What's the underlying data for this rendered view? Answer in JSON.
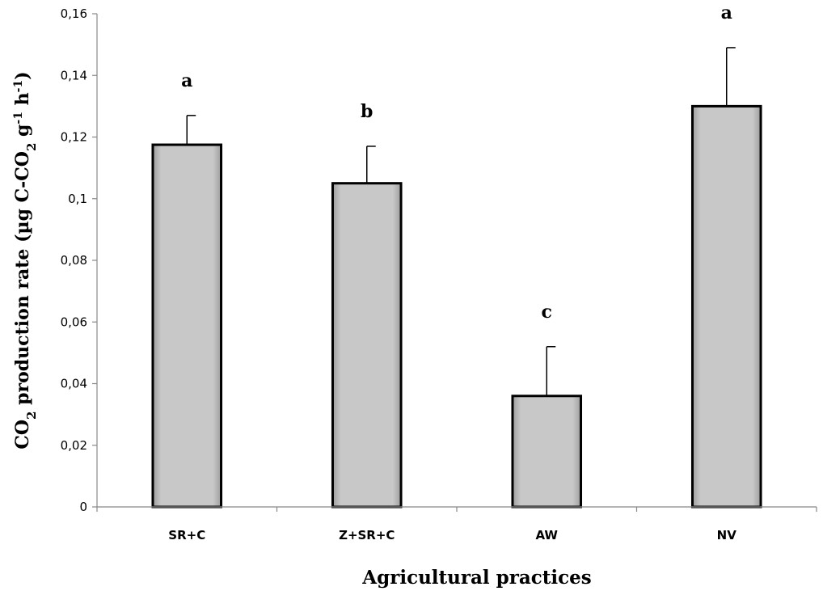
{
  "chart_data": {
    "type": "bar",
    "categories": [
      "SR+C",
      "Z+SR+C",
      "AW",
      "NV"
    ],
    "values": [
      0.1175,
      0.105,
      0.036,
      0.13
    ],
    "error_upper": [
      0.127,
      0.117,
      0.052,
      0.149
    ],
    "significance_letters": [
      "a",
      "b",
      "c",
      "a"
    ],
    "xlabel": "Agricultural practices",
    "ylabel": {
      "prefix": "CO",
      "prefix_sub": "2",
      "main": " production rate (µg C-CO",
      "sub": "2",
      "g": " g",
      "g_sup": "-1",
      "h": " h",
      "h_sup": "-1",
      "close": ")"
    },
    "ylim": [
      0,
      0.16
    ],
    "yticks": [
      0,
      0.02,
      0.04,
      0.06,
      0.08,
      0.1,
      0.12,
      0.14,
      0.16
    ],
    "ytick_labels": [
      "0",
      "0,02",
      "0,04",
      "0,06",
      "0,08",
      "0,1",
      "0,12",
      "0,14",
      "0,16"
    ],
    "bar_color": "#c8c8c8",
    "bar_edge_color": "#000000",
    "grid": false
  }
}
